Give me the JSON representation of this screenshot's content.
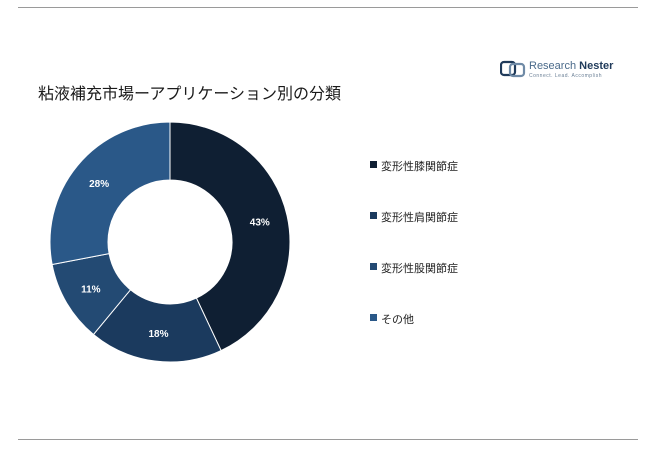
{
  "brand": {
    "name_light": "Research",
    "name_bold": "Nester",
    "tagline": "Connect. Lead. Accomplish",
    "color": "#1f3a5a"
  },
  "title": "粘液補充市場ーアプリケーション別の分類",
  "chart_data": {
    "type": "pie",
    "donut": true,
    "title": "粘液補充市場ーアプリケーション別の分類",
    "categories": [
      "変形性膝関節症",
      "変形性肩関節症",
      "変形性股関節症",
      "その他"
    ],
    "values": [
      43,
      18,
      11,
      28
    ],
    "labels": [
      "43%",
      "18%",
      "11%",
      "28%"
    ],
    "colors": [
      "#0f1f33",
      "#1b3a5e",
      "#234a73",
      "#2a5888"
    ],
    "legend_position": "right"
  }
}
